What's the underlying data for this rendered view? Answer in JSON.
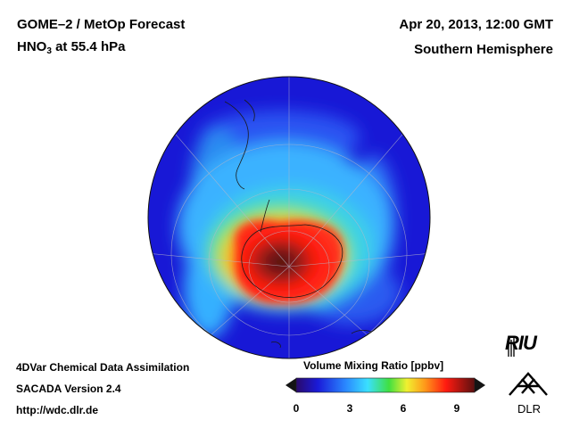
{
  "header": {
    "title_line1": "GOME–2 / MetOp Forecast",
    "species_main": "HNO",
    "species_sub": "3",
    "species_rest": " at 55.4 hPa",
    "date": "Apr 20, 2013, 12:00 GMT",
    "region": "Southern Hemisphere"
  },
  "footer": {
    "line1": "4DVar Chemical Data Assimilation",
    "line2": "SACADA Version 2.4",
    "url": "http://wdc.dlr.de"
  },
  "colorbar": {
    "title": "Volume Mixing Ratio [ppbv]",
    "min": 0,
    "max": 10,
    "ticks": [
      "0",
      "3",
      "6",
      "9"
    ],
    "tick_values": [
      0,
      3,
      6,
      9
    ]
  },
  "logos": {
    "riu": "RIU",
    "dlr": "DLR"
  },
  "colors": {
    "ocean_low": "#1a1ad8",
    "mid": "#3aa0ff",
    "high": "#ff2a1e",
    "peak": "#5a1414"
  }
}
